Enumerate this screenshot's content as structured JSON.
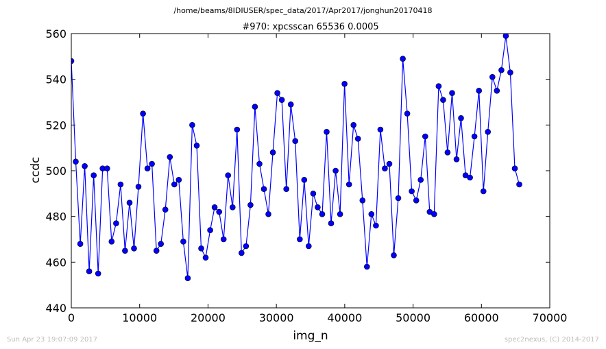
{
  "figure": {
    "suptitle": "/home/beams/8IDIUSER/spec_data/2017/Apr2017/jonghun20170418",
    "footer_left": "Sun Apr 23 19:07:09 2017",
    "footer_right": "spec2nexus, (C) 2014-2017"
  },
  "colors": {
    "series": "#0000ff",
    "marker": "#0000ff",
    "axes": "#000000"
  },
  "chart_data": {
    "type": "line",
    "title": "#970: xpcsscan 65536 0.0005",
    "xlabel": "img_n",
    "ylabel": "ccdc",
    "xlim": [
      0,
      70000
    ],
    "ylim": [
      440,
      560
    ],
    "xticks": [
      0,
      10000,
      20000,
      30000,
      40000,
      50000,
      60000,
      70000
    ],
    "yticks": [
      440,
      460,
      480,
      500,
      520,
      540,
      560
    ],
    "grid": false,
    "legend": "none",
    "series": [
      {
        "markers": true,
        "x": [
          0,
          655,
          1311,
          1966,
          2621,
          3277,
          3932,
          4588,
          5243,
          5898,
          6554,
          7209,
          7864,
          8520,
          9175,
          9830,
          10486,
          11141,
          11796,
          12452,
          13107,
          13763,
          14418,
          15073,
          15729,
          16384,
          17039,
          17695,
          18350,
          19005,
          19661,
          20316,
          20972,
          21627,
          22282,
          22938,
          23593,
          24248,
          24904,
          25559,
          26214,
          26870,
          27525,
          28180,
          28836,
          29491,
          30147,
          30802,
          31457,
          32113,
          32768,
          33423,
          34079,
          34734,
          35389,
          36045,
          36700,
          37356,
          38011,
          38666,
          39322,
          39977,
          40632,
          41288,
          41943,
          42598,
          43254,
          43909,
          44565,
          45220,
          45875,
          46531,
          47186,
          47841,
          48497,
          49152,
          49807,
          50463,
          51118,
          51773,
          52429,
          53084,
          53740,
          54395,
          55050,
          55706,
          56361,
          57016,
          57672,
          58327,
          58982,
          59638,
          60293,
          60949,
          61604,
          62259,
          62915,
          63570,
          64225,
          64881,
          65536
        ],
        "y": [
          548,
          504,
          468,
          502,
          456,
          498,
          455,
          501,
          501,
          469,
          477,
          494,
          465,
          486,
          466,
          493,
          525,
          501,
          503,
          465,
          468,
          483,
          506,
          494,
          496,
          469,
          453,
          520,
          511,
          466,
          462,
          474,
          484,
          482,
          470,
          498,
          484,
          518,
          464,
          467,
          485,
          528,
          503,
          492,
          481,
          508,
          534,
          531,
          492,
          529,
          513,
          470,
          496,
          467,
          490,
          484,
          481,
          517,
          477,
          500,
          481,
          538,
          494,
          520,
          514,
          487,
          458,
          481,
          476,
          518,
          501,
          503,
          463,
          488,
          549,
          525,
          491,
          487,
          496,
          515,
          482,
          481,
          537,
          531,
          508,
          534,
          505,
          523,
          498,
          497,
          515,
          535,
          491,
          517,
          541,
          535,
          544,
          559,
          543,
          501,
          494
        ]
      }
    ]
  }
}
